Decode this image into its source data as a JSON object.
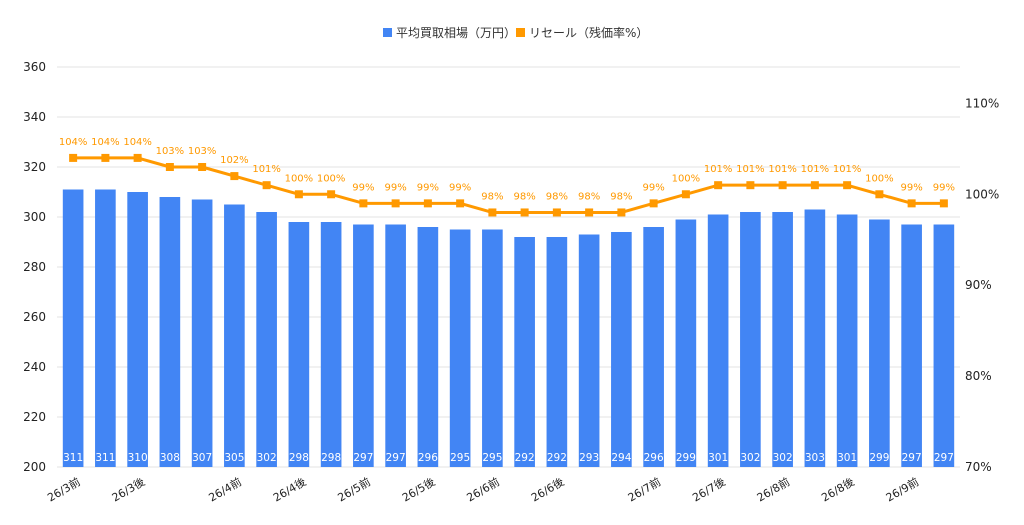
{
  "chart_data": {
    "type": "bar",
    "legend": {
      "position": "top",
      "entries": [
        "平均買取相場（万円）",
        "リセール（残価率%）"
      ]
    },
    "grid": true,
    "colors": {
      "bars": "#4285f4",
      "line": "#ff9900"
    },
    "y_left": {
      "ticks": [
        "200",
        "220",
        "240",
        "260",
        "280",
        "300",
        "320",
        "340",
        "360"
      ],
      "range": [
        200,
        360
      ]
    },
    "y_right": {
      "ticks": [
        "70%",
        "80%",
        "90%",
        "100%",
        "110%"
      ],
      "range": [
        70,
        114
      ]
    },
    "x_tick_labels": [
      {
        "index": 0,
        "text": "26/3前"
      },
      {
        "index": 2,
        "text": "26/3後"
      },
      {
        "index": 5,
        "text": "26/4前"
      },
      {
        "index": 7,
        "text": "26/4後"
      },
      {
        "index": 9,
        "text": "26/5前"
      },
      {
        "index": 11,
        "text": "26/5後"
      },
      {
        "index": 13,
        "text": "26/6前"
      },
      {
        "index": 15,
        "text": "26/6後"
      },
      {
        "index": 18,
        "text": "26/7前"
      },
      {
        "index": 20,
        "text": "26/7後"
      },
      {
        "index": 22,
        "text": "26/8前"
      },
      {
        "index": 24,
        "text": "26/8後"
      },
      {
        "index": 26,
        "text": "26/9前"
      }
    ],
    "series": [
      {
        "name": "平均買取相場（万円）",
        "type": "bar",
        "axis": "left",
        "values": [
          311,
          311,
          310,
          308,
          307,
          305,
          302,
          298,
          298,
          297,
          297,
          296,
          295,
          295,
          292,
          292,
          293,
          294,
          296,
          299,
          301,
          302,
          302,
          303,
          301,
          299,
          297,
          297
        ]
      },
      {
        "name": "リセール（残価率%）",
        "type": "line",
        "axis": "right",
        "values": [
          104,
          104,
          104,
          103,
          103,
          102,
          101,
          100,
          100,
          99,
          99,
          99,
          99,
          98,
          98,
          98,
          98,
          98,
          99,
          100,
          101,
          101,
          101,
          101,
          101,
          100,
          99,
          99
        ],
        "labels": [
          "104%",
          "104%",
          "104%",
          "103%",
          "103%",
          "102%",
          "101%",
          "100%",
          "100%",
          "99%",
          "99%",
          "99%",
          "99%",
          "98%",
          "98%",
          "98%",
          "98%",
          "98%",
          "99%",
          "100%",
          "101%",
          "101%",
          "101%",
          "101%",
          "101%",
          "100%",
          "99%",
          "99%"
        ]
      }
    ]
  }
}
